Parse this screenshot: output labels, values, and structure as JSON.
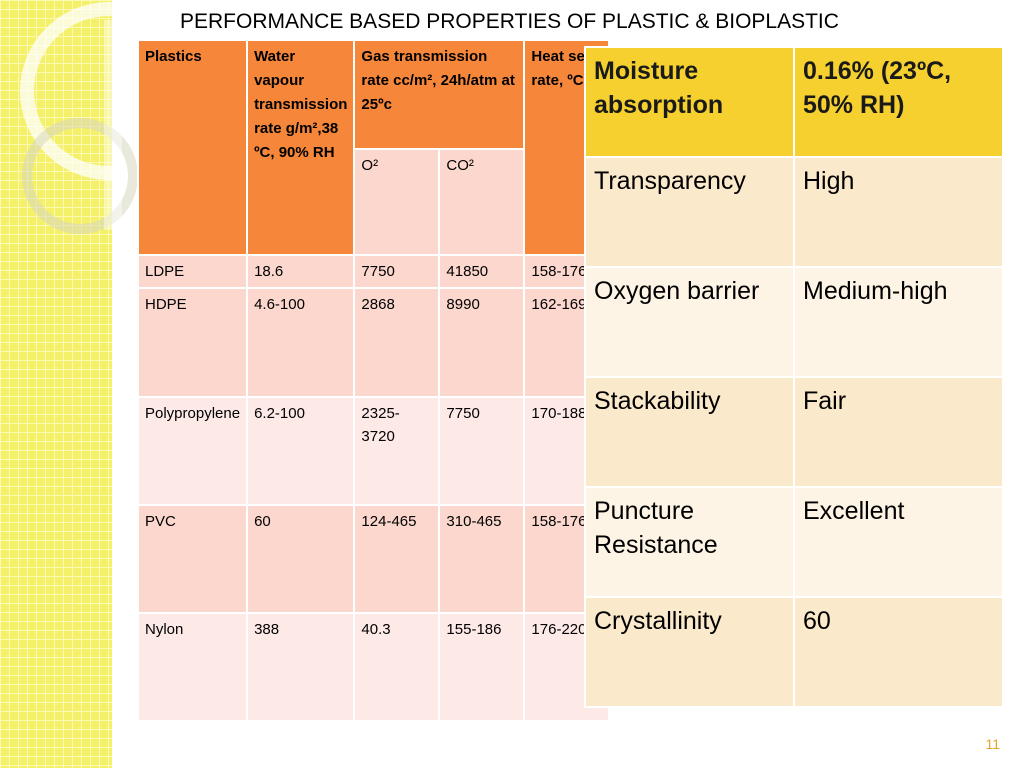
{
  "slide": {
    "title": "PERFORMANCE BASED PROPERTIES OF PLASTIC & BIOPLASTIC",
    "page_number": "11"
  },
  "plastic_table": {
    "headers": {
      "plastics": "Plastics",
      "water": "Water vapour transmission rate g/m²,38 ºC, 90% RH",
      "gas": "Gas transmission rate cc/m², 24h/atm at 25ºc",
      "heat": "Heat seal rate, ºC",
      "o2": "O²",
      "co2": "CO²"
    },
    "rows": [
      [
        "LDPE",
        "18.6",
        "7750",
        "41850",
        "158-176"
      ],
      [
        "HDPE",
        "4.6-100",
        "2868",
        "8990",
        "162-169"
      ],
      [
        "Polypropylene",
        "6.2-100",
        "2325-3720",
        "7750",
        "170-188"
      ],
      [
        "PVC",
        "60",
        "124-465",
        "310-465",
        "158-176"
      ],
      [
        "Nylon",
        "388",
        "40.3",
        "155-186",
        "176-220"
      ]
    ]
  },
  "bioplastic_table": {
    "rows": [
      [
        "Moisture absorption",
        "0.16% (23ºC, 50% RH)"
      ],
      [
        "Transparency",
        "High"
      ],
      [
        "Oxygen barrier",
        "Medium-high"
      ],
      [
        "Stackability",
        "Fair"
      ],
      [
        "Puncture Resistance",
        "Excellent"
      ],
      [
        "Crystallinity",
        "60"
      ]
    ]
  },
  "colors": {
    "header_orange": "#f5863a",
    "row_pink": "#fbd7ce",
    "header_yellow": "#f5d02e",
    "row_cream": "#fbe9cc",
    "page_number": "#e3a52a"
  }
}
